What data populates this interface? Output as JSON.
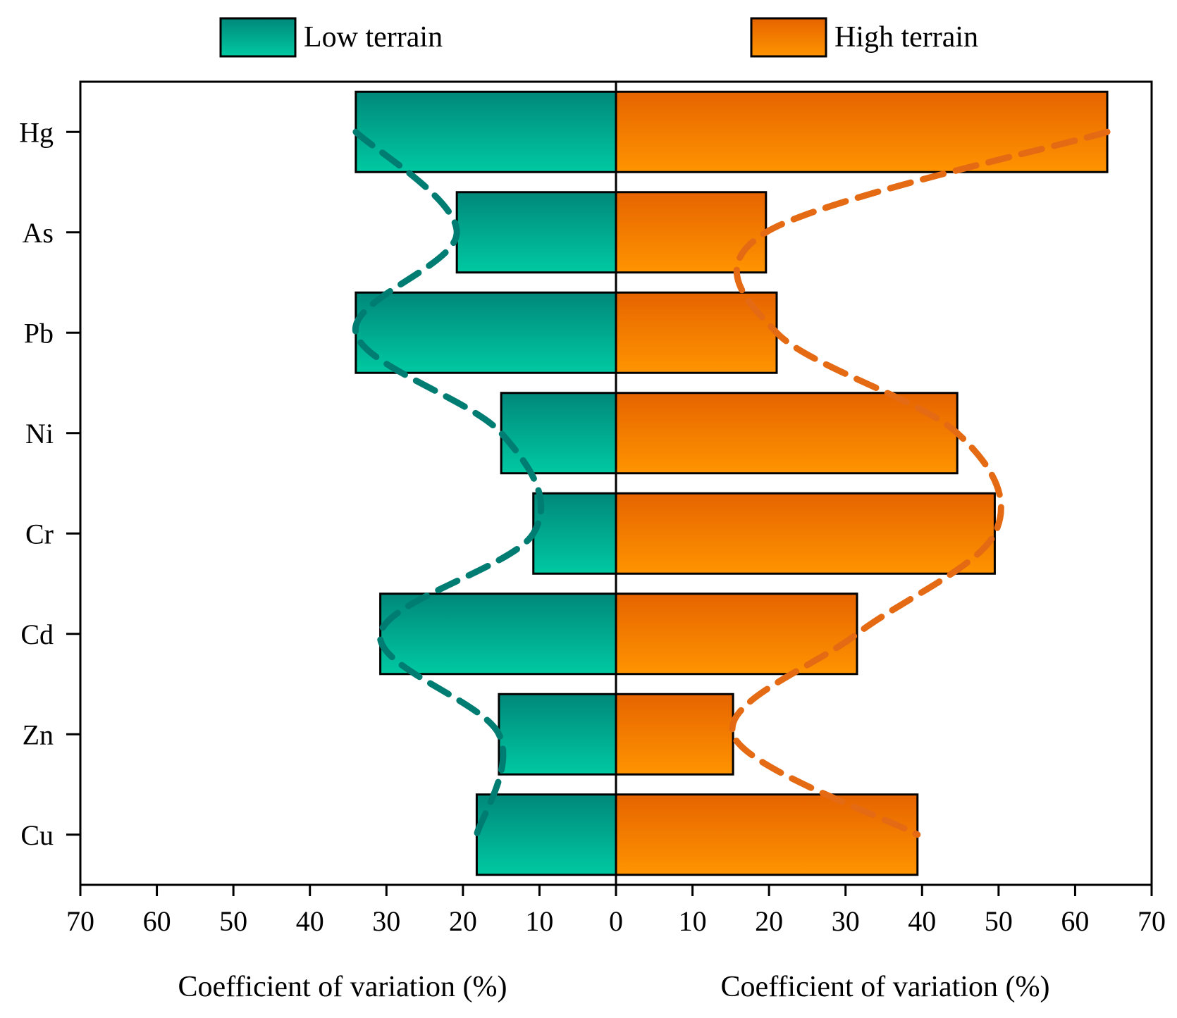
{
  "legend": {
    "low_label": "Low terrain",
    "high_label": "High terrain"
  },
  "axis_titles": {
    "left": "Coefficient of variation (%)",
    "right": "Coefficient of variation (%)"
  },
  "chart_data": {
    "type": "bar",
    "orientation": "horizontal-diverging",
    "categories": [
      "Hg",
      "As",
      "Pb",
      "Ni",
      "Cr",
      "Cd",
      "Zn",
      "Cu"
    ],
    "series": [
      {
        "name": "Low terrain",
        "direction": "left",
        "values": [
          34,
          20.8,
          34,
          15,
          10.8,
          30.8,
          15.3,
          18.2
        ]
      },
      {
        "name": "High terrain",
        "direction": "right",
        "values": [
          64.2,
          19.6,
          21,
          44.6,
          49.5,
          31.5,
          15.3,
          39.4
        ]
      }
    ],
    "xlim": [
      -70,
      70
    ],
    "xticks": [
      -70,
      -60,
      -50,
      -40,
      -30,
      -20,
      -10,
      0,
      10,
      20,
      30,
      40,
      50,
      60,
      70
    ],
    "xtick_labels": [
      "70",
      "60",
      "50",
      "40",
      "30",
      "20",
      "10",
      "0",
      "10",
      "20",
      "30",
      "40",
      "50",
      "60",
      "70"
    ],
    "xlabel_left": "Coefficient of variation (%)",
    "xlabel_right": "Coefficient of variation (%)",
    "ylabel": "",
    "legend_position": "top",
    "trend_lines": "dashed, one per series through bar ends",
    "colors": {
      "low_top": "#00887a",
      "low_bottom": "#00c9a2",
      "low_line": "#007d72",
      "high_top": "#e66400",
      "high_bottom": "#ff9400",
      "high_line": "#e56a14"
    }
  }
}
